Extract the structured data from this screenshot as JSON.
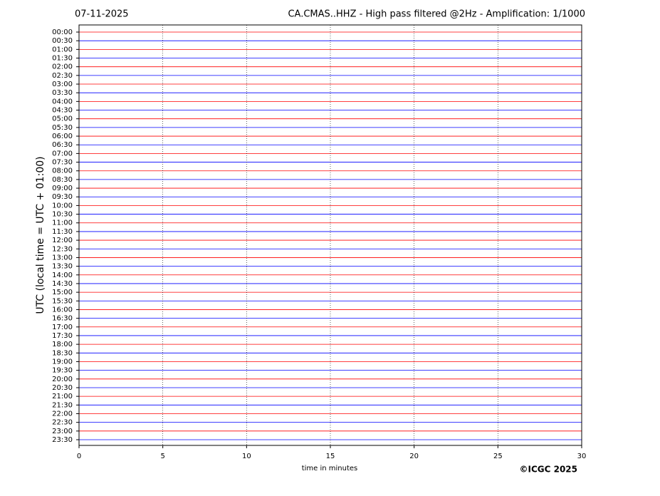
{
  "chart_data": {
    "type": "helicorder",
    "title": "CA.CMAS..HHZ - High pass filtered @2Hz - Amplification: 1/1000",
    "date": "07-11-2025",
    "x_label": "time in minutes",
    "y_label": "UTC (local time = UTC + 01:00)",
    "credit": "©ICGC 2025",
    "categories": [
      "00:00",
      "00:30",
      "01:00",
      "01:30",
      "02:00",
      "02:30",
      "03:00",
      "03:30",
      "04:00",
      "04:30",
      "05:00",
      "05:30",
      "06:00",
      "06:30",
      "07:00",
      "07:30",
      "08:00",
      "08:30",
      "09:00",
      "09:30",
      "10:00",
      "10:30",
      "11:00",
      "11:30",
      "12:00",
      "12:30",
      "13:00",
      "13:30",
      "14:00",
      "14:30",
      "15:00",
      "15:30",
      "16:00",
      "16:30",
      "17:00",
      "17:30",
      "18:00",
      "18:30",
      "19:00",
      "19:30",
      "20:00",
      "20:30",
      "21:00",
      "21:30",
      "22:00",
      "22:30",
      "23:00",
      "23:30"
    ],
    "colors": [
      "#ff0000",
      "#0000ff"
    ],
    "xlim": [
      0,
      30
    ],
    "xticks": [
      0,
      5,
      10,
      15,
      20,
      25,
      30
    ],
    "grid": true
  }
}
